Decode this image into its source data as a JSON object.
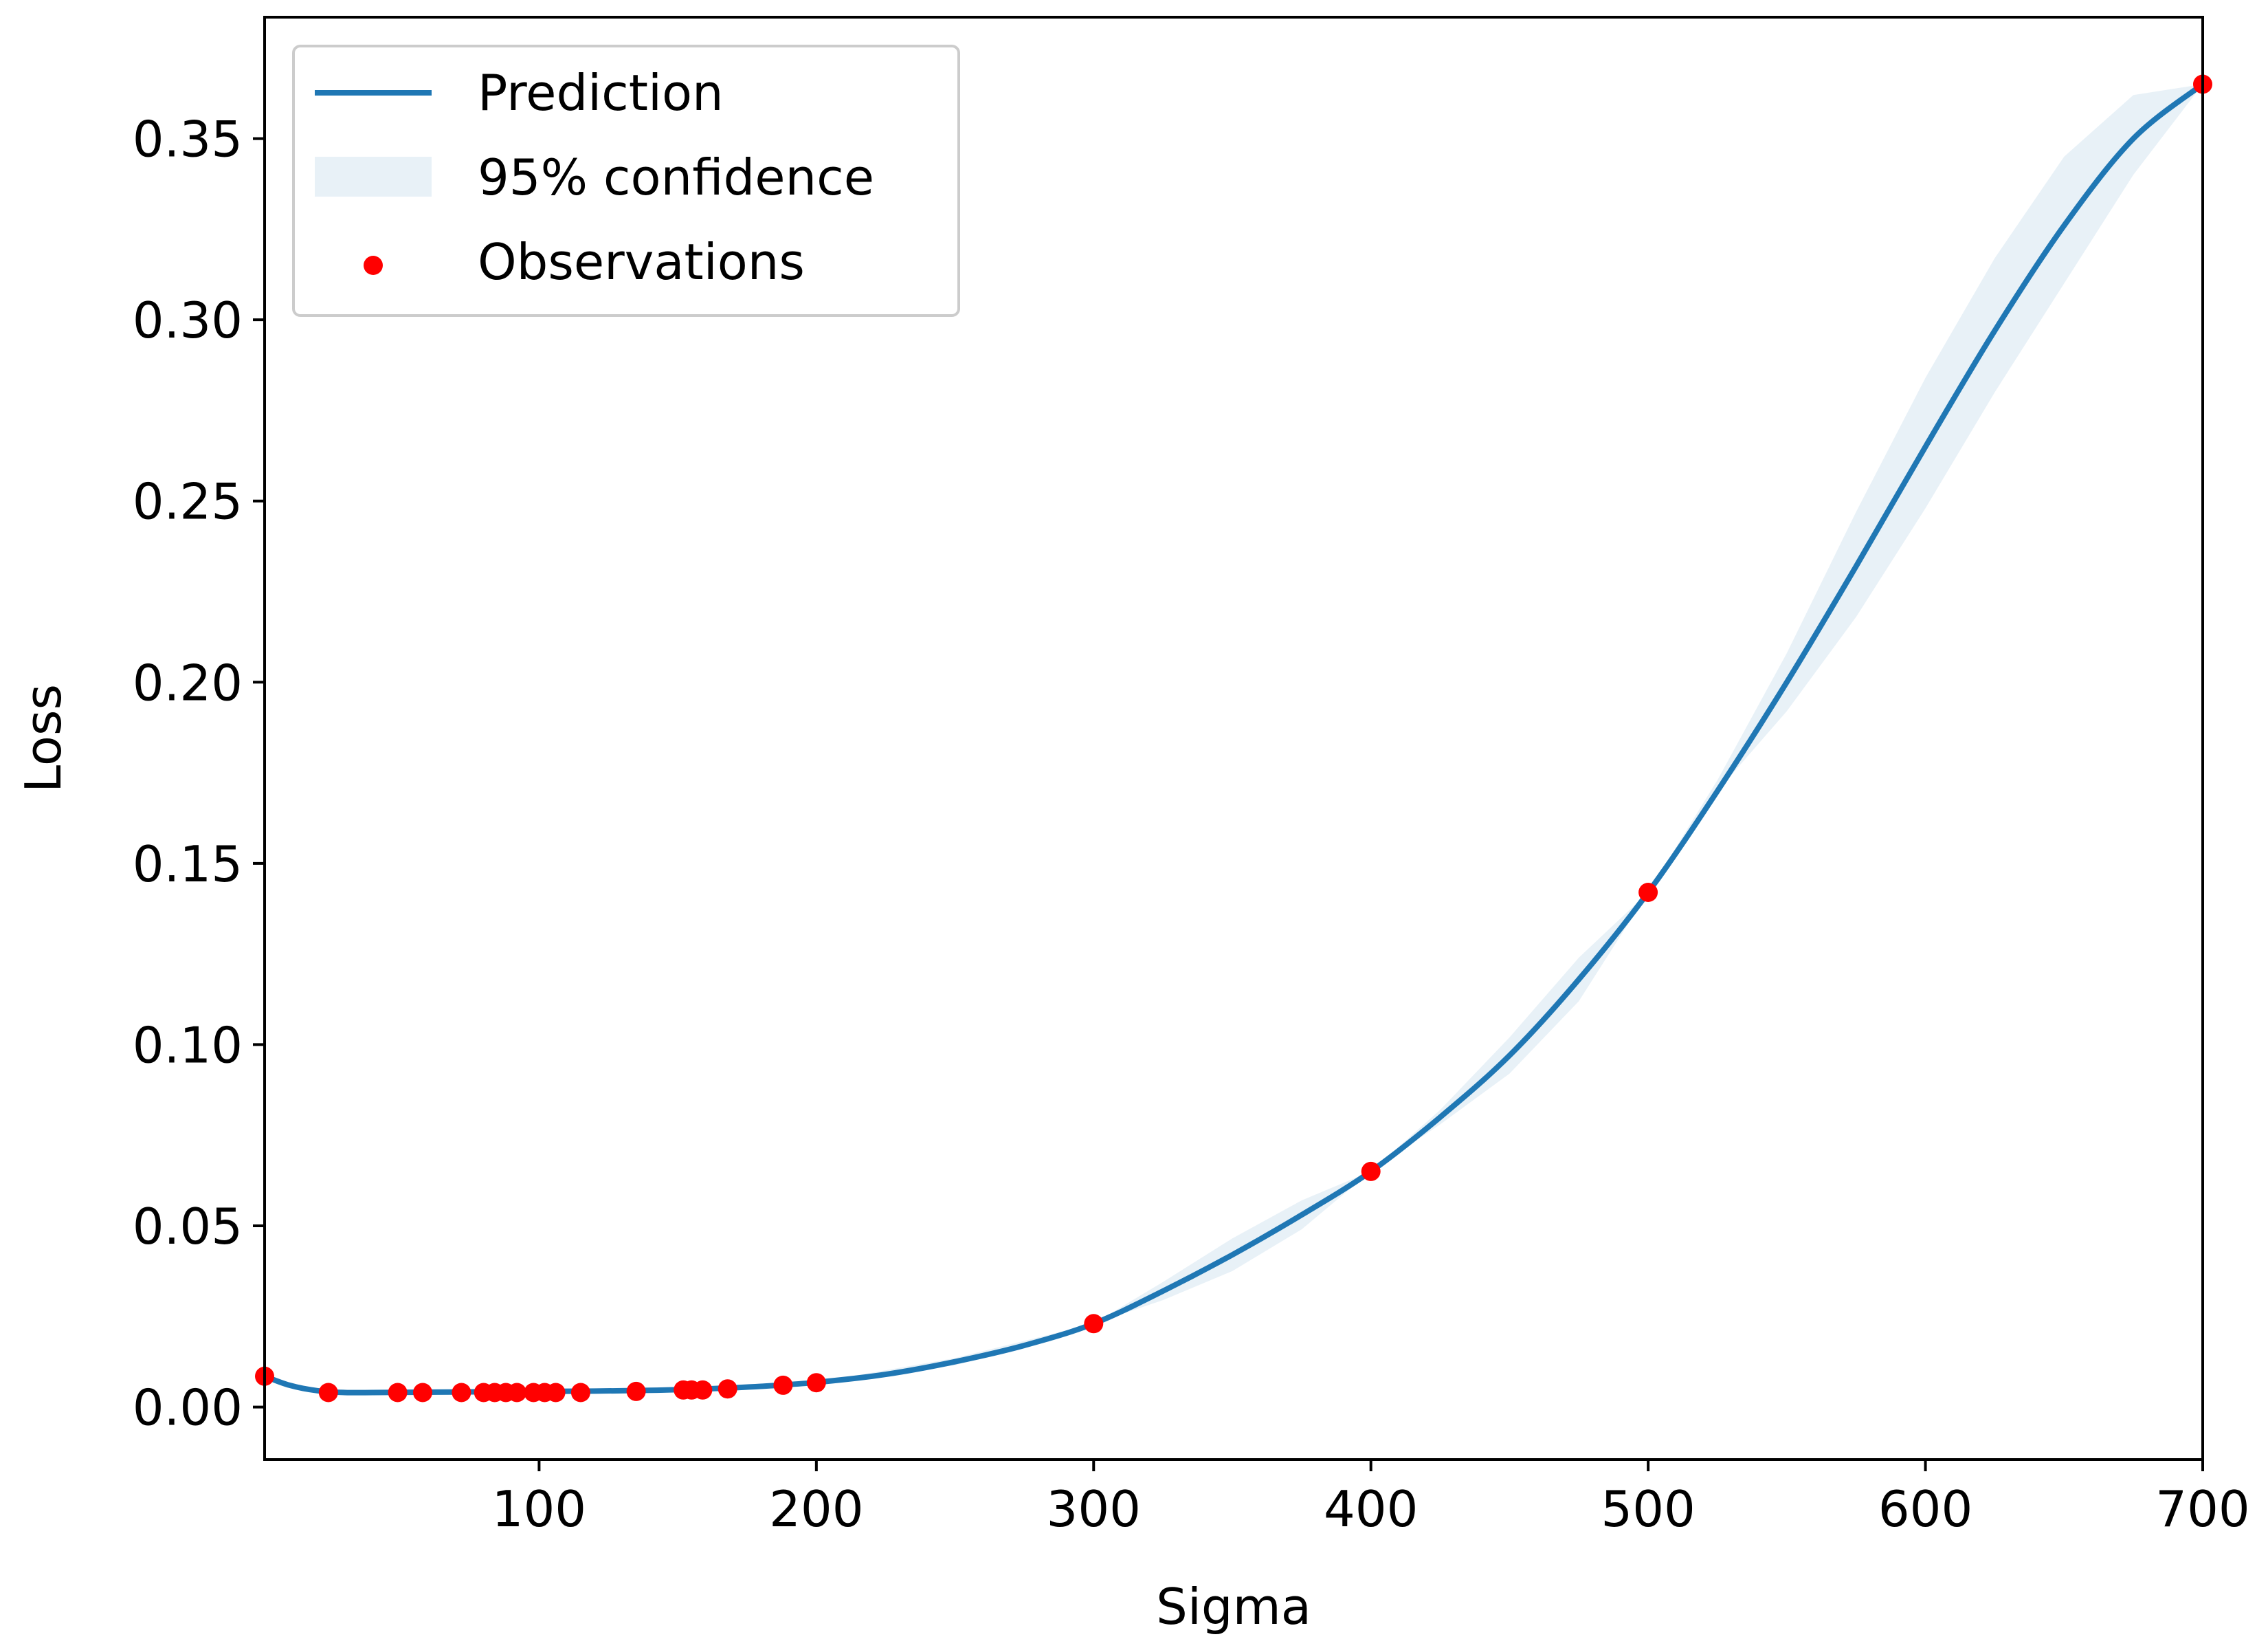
{
  "chart_data": {
    "type": "line",
    "title": "",
    "xlabel": "Sigma",
    "ylabel": "Loss",
    "xlim": [
      1,
      700
    ],
    "ylim": [
      -0.0145,
      0.3835
    ],
    "grid": false,
    "legend_position": "top-left",
    "xticks": [
      {
        "value": 100,
        "label": "100"
      },
      {
        "value": 200,
        "label": "200"
      },
      {
        "value": 300,
        "label": "300"
      },
      {
        "value": 400,
        "label": "400"
      },
      {
        "value": 500,
        "label": "500"
      },
      {
        "value": 600,
        "label": "600"
      },
      {
        "value": 700,
        "label": "700"
      }
    ],
    "yticks": [
      {
        "value": 0.0,
        "label": "0.00"
      },
      {
        "value": 0.05,
        "label": "0.05"
      },
      {
        "value": 0.1,
        "label": "0.10"
      },
      {
        "value": 0.15,
        "label": "0.15"
      },
      {
        "value": 0.2,
        "label": "0.20"
      },
      {
        "value": 0.25,
        "label": "0.25"
      },
      {
        "value": 0.3,
        "label": "0.30"
      },
      {
        "value": 0.35,
        "label": "0.35"
      }
    ],
    "series": [
      {
        "name": "Prediction",
        "kind": "line",
        "color": "#1f77b4",
        "x": [
          1,
          10,
          20,
          30,
          40,
          60,
          80,
          100,
          120,
          140,
          160,
          180,
          200,
          225,
          250,
          275,
          300,
          325,
          350,
          375,
          400,
          425,
          450,
          475,
          500,
          525,
          550,
          575,
          600,
          625,
          650,
          675,
          700
        ],
        "y": [
          0.0085,
          0.006,
          0.0045,
          0.004,
          0.004,
          0.0041,
          0.0042,
          0.0043,
          0.0044,
          0.0046,
          0.005,
          0.0057,
          0.0068,
          0.009,
          0.0125,
          0.017,
          0.023,
          0.032,
          0.042,
          0.053,
          0.065,
          0.08,
          0.097,
          0.118,
          0.142,
          0.17,
          0.2,
          0.232,
          0.265,
          0.297,
          0.326,
          0.35,
          0.365
        ]
      },
      {
        "name": "95% confidence",
        "kind": "band",
        "color": "#1f77b4",
        "opacity": 0.1,
        "x": [
          1,
          100,
          200,
          250,
          300,
          325,
          350,
          375,
          400,
          425,
          450,
          475,
          500,
          525,
          550,
          575,
          600,
          625,
          650,
          675,
          700
        ],
        "lower": [
          0.0085,
          0.0043,
          0.0068,
          0.0115,
          0.023,
          0.0295,
          0.0375,
          0.049,
          0.065,
          0.078,
          0.092,
          0.112,
          0.142,
          0.17,
          0.192,
          0.218,
          0.248,
          0.28,
          0.31,
          0.34,
          0.365
        ],
        "upper": [
          0.0085,
          0.0043,
          0.0068,
          0.0135,
          0.023,
          0.0345,
          0.0465,
          0.057,
          0.065,
          0.082,
          0.102,
          0.124,
          0.142,
          0.173,
          0.208,
          0.247,
          0.284,
          0.317,
          0.345,
          0.362,
          0.365
        ]
      },
      {
        "name": "Observations",
        "kind": "scatter",
        "color": "#ff0000",
        "x": [
          1,
          24,
          49,
          58,
          72,
          80,
          84,
          88,
          92,
          98,
          102,
          106,
          115,
          135,
          152,
          155,
          159,
          168,
          188,
          200,
          300,
          400,
          500,
          700
        ],
        "y": [
          0.0085,
          0.004,
          0.004,
          0.004,
          0.004,
          0.004,
          0.004,
          0.004,
          0.004,
          0.004,
          0.004,
          0.004,
          0.004,
          0.0043,
          0.0047,
          0.0047,
          0.0047,
          0.005,
          0.006,
          0.0067,
          0.023,
          0.065,
          0.142,
          0.365
        ]
      }
    ]
  }
}
